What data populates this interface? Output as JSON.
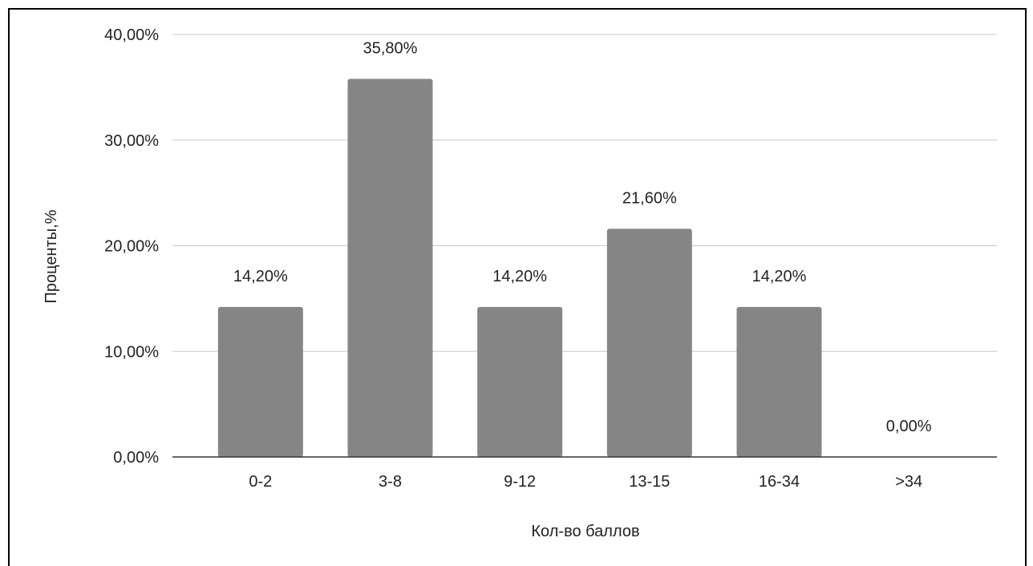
{
  "chart_data": {
    "type": "bar",
    "title": "",
    "xlabel": "Кол-во баллов",
    "ylabel": "Проценты,%",
    "categories": [
      "0-2",
      "3-8",
      "9-12",
      "13-15",
      "16-34",
      ">34"
    ],
    "values": [
      14.2,
      35.8,
      14.2,
      21.6,
      14.2,
      0.0
    ],
    "data_labels": [
      "14,20%",
      "35,80%",
      "14,20%",
      "21,60%",
      "14,20%",
      "0,00%"
    ],
    "ylim": [
      0,
      40
    ],
    "yticks": [
      0,
      10,
      20,
      30,
      40
    ],
    "ytick_labels": [
      "0,00%",
      "10,00%",
      "20,00%",
      "30,00%",
      "40,00%"
    ],
    "grid": true,
    "legend": "none",
    "bar_color": "#858585"
  }
}
